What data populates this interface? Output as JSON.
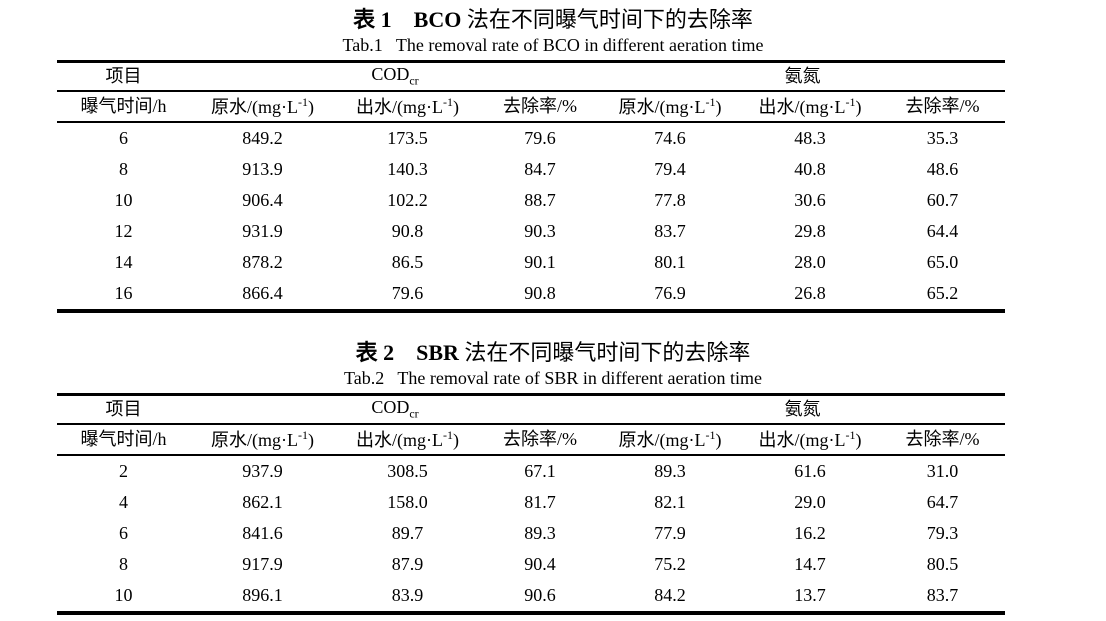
{
  "page": {
    "background": "#ffffff",
    "text_color": "#000000"
  },
  "tables": [
    {
      "caption_cn_bold": "表 1　BCO",
      "caption_cn_rest": " 法在不同曝气时间下的去除率",
      "caption_en": "Tab.1   The removal rate of BCO in different aeration time",
      "headers": {
        "item": "项目",
        "cod": "COD",
        "cod_sub": "cr",
        "ammonia": "氨氮",
        "time": "曝气时间/h",
        "influent_prefix": "原水/(mg·L",
        "effluent_prefix": "出水/(mg·L",
        "unit_sup": "-1",
        "unit_close": ")",
        "removal": "去除率/%"
      },
      "rows": [
        [
          "6",
          "849.2",
          "173.5",
          "79.6",
          "74.6",
          "48.3",
          "35.3"
        ],
        [
          "8",
          "913.9",
          "140.3",
          "84.7",
          "79.4",
          "40.8",
          "48.6"
        ],
        [
          "10",
          "906.4",
          "102.2",
          "88.7",
          "77.8",
          "30.6",
          "60.7"
        ],
        [
          "12",
          "931.9",
          "90.8",
          "90.3",
          "83.7",
          "29.8",
          "64.4"
        ],
        [
          "14",
          "878.2",
          "86.5",
          "90.1",
          "80.1",
          "28.0",
          "65.0"
        ],
        [
          "16",
          "866.4",
          "79.6",
          "90.8",
          "76.9",
          "26.8",
          "65.2"
        ]
      ]
    },
    {
      "caption_cn_bold": "表 2　SBR",
      "caption_cn_rest": " 法在不同曝气时间下的去除率",
      "caption_en": "Tab.2   The removal rate of SBR in different aeration time",
      "headers": {
        "item": "项目",
        "cod": "COD",
        "cod_sub": "cr",
        "ammonia": "氨氮",
        "time": "曝气时间/h",
        "influent_prefix": "原水/(mg·L",
        "effluent_prefix": "出水/(mg·L",
        "unit_sup": "-1",
        "unit_close": ")",
        "removal": "去除率/%"
      },
      "rows": [
        [
          "2",
          "937.9",
          "308.5",
          "67.1",
          "89.3",
          "61.6",
          "31.0"
        ],
        [
          "4",
          "862.1",
          "158.0",
          "81.7",
          "82.1",
          "29.0",
          "64.7"
        ],
        [
          "6",
          "841.6",
          "89.7",
          "89.3",
          "77.9",
          "16.2",
          "79.3"
        ],
        [
          "8",
          "917.9",
          "87.9",
          "90.4",
          "75.2",
          "14.7",
          "80.5"
        ],
        [
          "10",
          "896.1",
          "83.9",
          "90.6",
          "84.2",
          "13.7",
          "83.7"
        ]
      ]
    }
  ]
}
